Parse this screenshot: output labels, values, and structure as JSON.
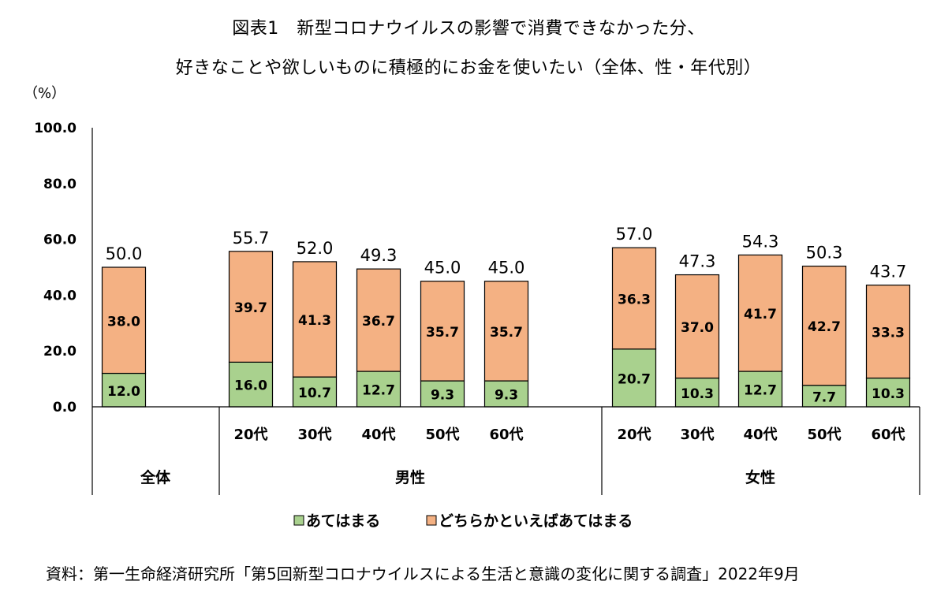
{
  "title_line1": "図表1　新型コロナウイルスの影響で消費できなかった分、",
  "title_line2": "好きなことや欲しいものに積極的にお金を使いたい（全体、性・年代別）",
  "source": "資料：第一生命経済研究所「第5回新型コロナウイルスによる生活と意識の変化に関する調査」2022年9月",
  "colors": {
    "series_a": "#A9D18E",
    "series_b": "#F4B183",
    "stroke": "#000000"
  },
  "chart_data": {
    "type": "bar",
    "stacked": true,
    "ylabel": "（%）",
    "ylim": [
      0,
      100
    ],
    "yticks": [
      "0.0",
      "20.0",
      "40.0",
      "60.0",
      "80.0",
      "100.0"
    ],
    "categories": [
      "全体",
      "20代",
      "30代",
      "40代",
      "50代",
      "60代",
      "20代",
      "30代",
      "40代",
      "50代",
      "60代"
    ],
    "category_labels": [
      "",
      "20代",
      "30代",
      "40代",
      "50代",
      "60代",
      "20代",
      "30代",
      "40代",
      "50代",
      "60代"
    ],
    "groups": [
      {
        "label": "全体",
        "members": [
          0
        ]
      },
      {
        "label": "男性",
        "members": [
          1,
          2,
          3,
          4,
          5
        ]
      },
      {
        "label": "女性",
        "members": [
          6,
          7,
          8,
          9,
          10
        ]
      }
    ],
    "series": [
      {
        "name": "あてはまる",
        "values": [
          12.0,
          16.0,
          10.7,
          12.7,
          9.3,
          9.3,
          20.7,
          10.3,
          12.7,
          7.7,
          10.3
        ]
      },
      {
        "name": "どちらかといえばあてはまる",
        "values": [
          38.0,
          39.7,
          41.3,
          36.7,
          35.7,
          35.7,
          36.3,
          37.0,
          41.7,
          42.7,
          33.3
        ]
      }
    ],
    "series_labels": [
      [
        "12.0",
        "16.0",
        "10.7",
        "12.7",
        "9.3",
        "9.3",
        "20.7",
        "10.3",
        "12.7",
        "7.7",
        "10.3"
      ],
      [
        "38.0",
        "39.7",
        "41.3",
        "36.7",
        "35.7",
        "35.7",
        "36.3",
        "37.0",
        "41.7",
        "42.7",
        "33.3"
      ]
    ],
    "totals": [
      50.0,
      55.7,
      52.0,
      49.3,
      45.0,
      45.0,
      57.0,
      47.3,
      54.3,
      50.3,
      43.7
    ],
    "total_labels": [
      "50.0",
      "55.7",
      "52.0",
      "49.3",
      "45.0",
      "45.0",
      "57.0",
      "47.3",
      "54.3",
      "50.3",
      "43.7"
    ],
    "legend_position": "bottom"
  }
}
